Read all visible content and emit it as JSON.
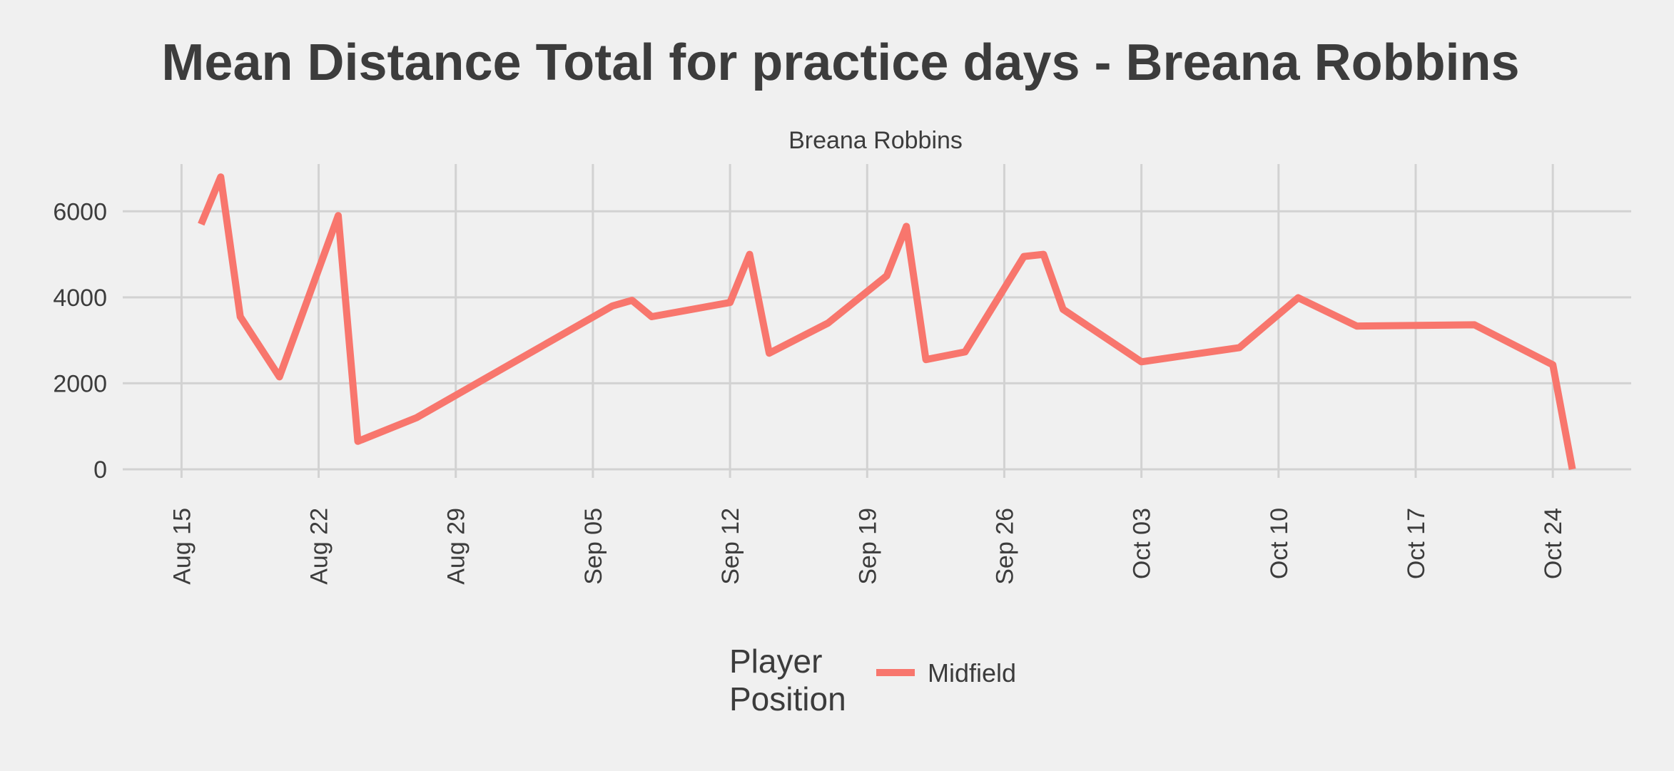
{
  "chart_data": {
    "type": "line",
    "title": "Mean Distance Total for practice days -  Breana Robbins",
    "facet_label": "Breana Robbins",
    "xlabel": "",
    "ylabel": "",
    "x_tick_labels": [
      "Aug 15",
      "Aug 22",
      "Aug 29",
      "Sep 05",
      "Sep 12",
      "Sep 19",
      "Sep 26",
      "Oct 03",
      "Oct 10",
      "Oct 17",
      "Oct 24"
    ],
    "y_tick_labels": [
      "0",
      "2000",
      "4000",
      "6000"
    ],
    "ylim": [
      -200,
      7100
    ],
    "xlim": [
      "2016-08-12",
      "2016-10-28"
    ],
    "legend": {
      "title_lines": [
        "Player",
        "Position"
      ],
      "position": "bottom"
    },
    "grid": true,
    "series": [
      {
        "name": "Midfield",
        "color": "#f8766d",
        "x": [
          "2016-08-16",
          "2016-08-17",
          "2016-08-18",
          "2016-08-20",
          "2016-08-23",
          "2016-08-24",
          "2016-08-27",
          "2016-09-06",
          "2016-09-07",
          "2016-09-08",
          "2016-09-12",
          "2016-09-13",
          "2016-09-14",
          "2016-09-17",
          "2016-09-20",
          "2016-09-21",
          "2016-09-22",
          "2016-09-24",
          "2016-09-27",
          "2016-09-28",
          "2016-09-29",
          "2016-10-03",
          "2016-10-08",
          "2016-10-11",
          "2016-10-14",
          "2016-10-20",
          "2016-10-24",
          "2016-10-25"
        ],
        "values": [
          5700,
          6800,
          3550,
          2150,
          5900,
          650,
          1200,
          3800,
          3930,
          3550,
          3880,
          5000,
          2700,
          3400,
          4500,
          5650,
          2550,
          2730,
          4950,
          5000,
          3720,
          2500,
          2830,
          3990,
          3330,
          3360,
          2430,
          0
        ]
      }
    ]
  }
}
